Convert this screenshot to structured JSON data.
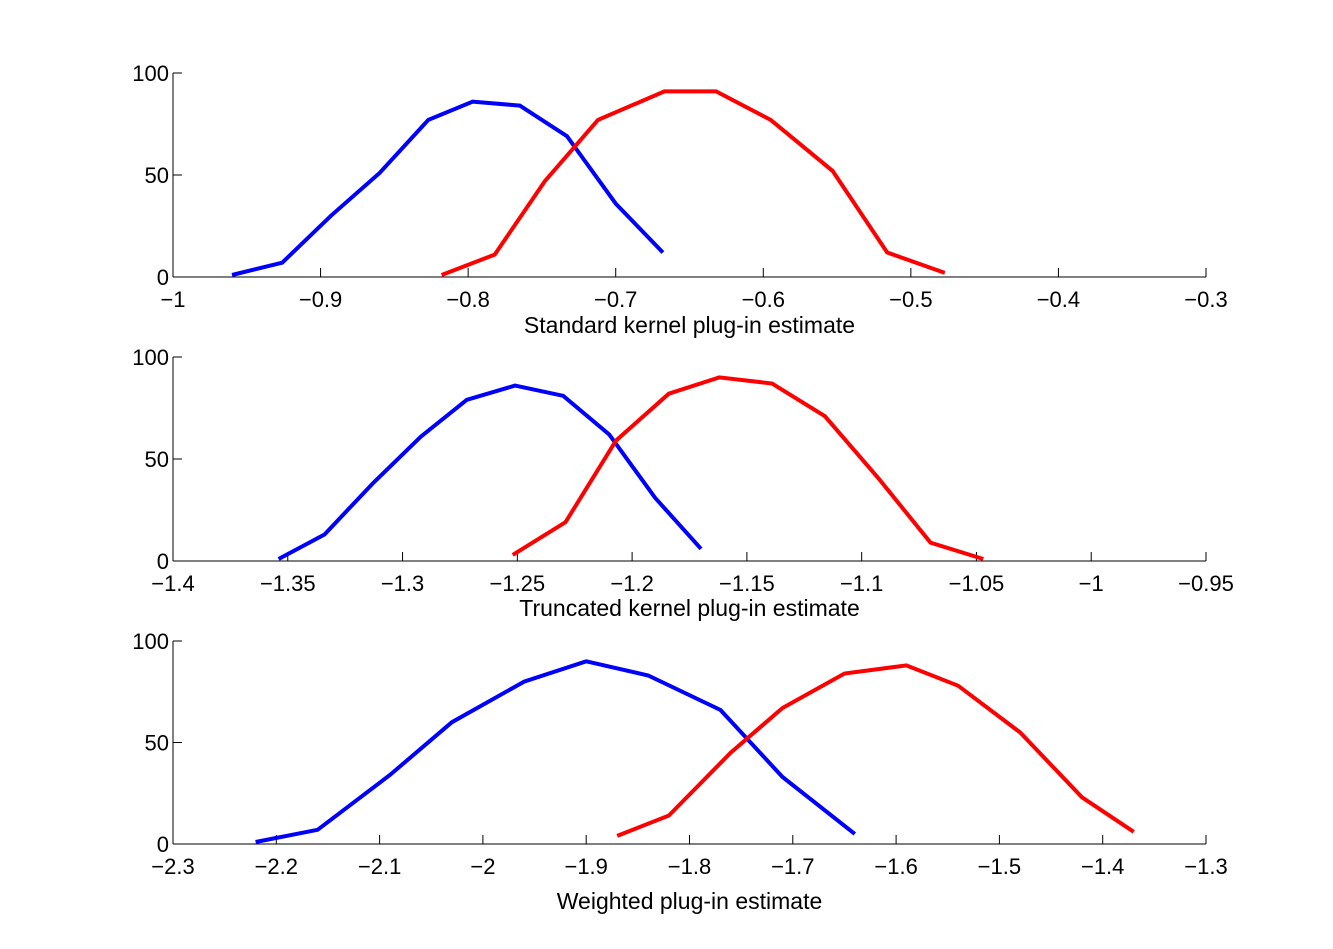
{
  "chart_data": [
    {
      "type": "line",
      "title": "",
      "xlabel": "Standard kernel plug-in estimate",
      "ylabel": "",
      "xlim": [
        -1,
        -0.3
      ],
      "ylim": [
        0,
        100
      ],
      "xticks": [
        -1,
        -0.9,
        -0.8,
        -0.7,
        -0.6,
        -0.5,
        -0.4,
        -0.3
      ],
      "xtick_labels": [
        "−1",
        "−0.9",
        "−0.8",
        "−0.7",
        "−0.6",
        "−0.5",
        "−0.4",
        "−0.3"
      ],
      "yticks": [
        0,
        50,
        100
      ],
      "ytick_labels": [
        "0",
        "50",
        "100"
      ],
      "grid": false,
      "series": [
        {
          "color": "#0000ff",
          "x": [
            -0.96,
            -0.926,
            -0.893,
            -0.86,
            -0.827,
            -0.797,
            -0.765,
            -0.733,
            -0.7,
            -0.668
          ],
          "y": [
            1,
            7,
            30,
            51,
            77,
            86,
            84,
            69,
            36,
            12
          ]
        },
        {
          "color": "#ff0000",
          "x": [
            -0.818,
            -0.782,
            -0.748,
            -0.712,
            -0.667,
            -0.632,
            -0.595,
            -0.553,
            -0.516,
            -0.477
          ],
          "y": [
            1,
            11,
            47,
            77,
            91,
            91,
            77,
            52,
            12,
            2
          ]
        }
      ]
    },
    {
      "type": "line",
      "title": "",
      "xlabel": "Truncated kernel plug-in estimate",
      "ylabel": "",
      "xlim": [
        -1.4,
        -0.95
      ],
      "ylim": [
        0,
        100
      ],
      "xticks": [
        -1.4,
        -1.35,
        -1.3,
        -1.25,
        -1.2,
        -1.15,
        -1.1,
        -1.05,
        -1,
        -0.95
      ],
      "xtick_labels": [
        "−1.4",
        "−1.35",
        "−1.3",
        "−1.25",
        "−1.2",
        "−1.15",
        "−1.1",
        "−1.05",
        "−1",
        "−0.95"
      ],
      "yticks": [
        0,
        50,
        100
      ],
      "ytick_labels": [
        "0",
        "50",
        "100"
      ],
      "grid": false,
      "series": [
        {
          "color": "#0000ff",
          "x": [
            -1.354,
            -1.334,
            -1.313,
            -1.292,
            -1.272,
            -1.251,
            -1.23,
            -1.21,
            -1.19,
            -1.17
          ],
          "y": [
            1,
            13,
            38,
            61,
            79,
            86,
            81,
            62,
            31,
            6
          ]
        },
        {
          "color": "#ff0000",
          "x": [
            -1.252,
            -1.229,
            -1.207,
            -1.184,
            -1.162,
            -1.139,
            -1.116,
            -1.093,
            -1.07,
            -1.047
          ],
          "y": [
            3,
            19,
            59,
            82,
            90,
            87,
            71,
            41,
            9,
            1
          ]
        }
      ]
    },
    {
      "type": "line",
      "title": "",
      "xlabel": "Weighted plug-in estimate",
      "ylabel": "",
      "xlim": [
        -2.3,
        -1.3
      ],
      "ylim": [
        0,
        100
      ],
      "xticks": [
        -2.3,
        -2.2,
        -2.1,
        -2,
        -1.9,
        -1.8,
        -1.7,
        -1.6,
        -1.5,
        -1.4,
        -1.3
      ],
      "xtick_labels": [
        "−2.3",
        "−2.2",
        "−2.1",
        "−2",
        "−1.9",
        "−1.8",
        "−1.7",
        "−1.6",
        "−1.5",
        "−1.4",
        "−1.3"
      ],
      "yticks": [
        0,
        50,
        100
      ],
      "ytick_labels": [
        "0",
        "50",
        "100"
      ],
      "grid": false,
      "series": [
        {
          "color": "#0000ff",
          "x": [
            -2.22,
            -2.16,
            -2.09,
            -2.03,
            -1.96,
            -1.9,
            -1.84,
            -1.77,
            -1.71,
            -1.64
          ],
          "y": [
            1,
            7,
            34,
            60,
            80,
            90,
            83,
            66,
            33,
            5
          ]
        },
        {
          "color": "#ff0000",
          "x": [
            -1.87,
            -1.82,
            -1.76,
            -1.71,
            -1.65,
            -1.59,
            -1.54,
            -1.48,
            -1.42,
            -1.37
          ],
          "y": [
            4,
            14,
            45,
            67,
            84,
            88,
            78,
            55,
            23,
            6
          ]
        }
      ]
    }
  ]
}
